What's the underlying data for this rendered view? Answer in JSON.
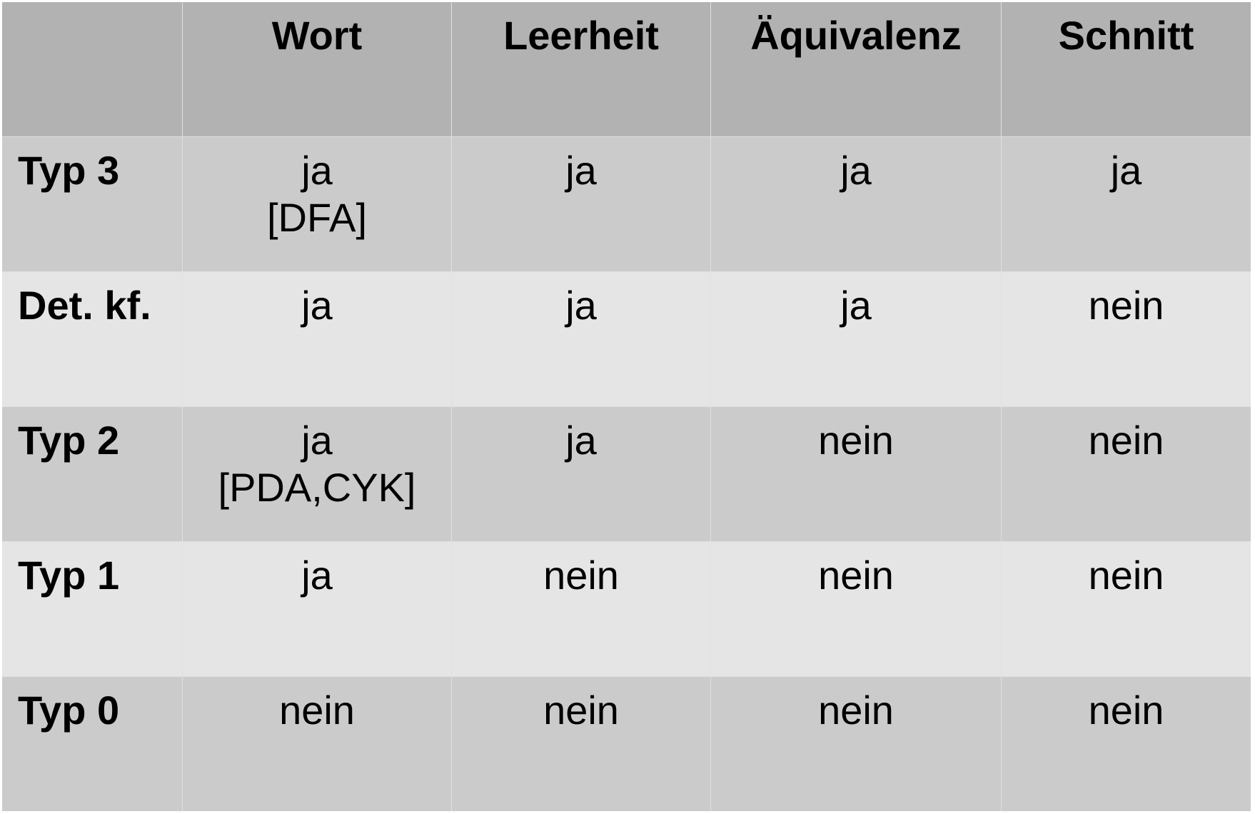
{
  "table": {
    "columns": [
      "Wort",
      "Leerheit",
      "Äquivalenz",
      "Schnitt"
    ],
    "rows": [
      {
        "label": "Typ 3",
        "cells": [
          [
            "ja",
            "[DFA]"
          ],
          [
            "ja"
          ],
          [
            "ja"
          ],
          [
            "ja"
          ]
        ]
      },
      {
        "label": "Det. kf.",
        "cells": [
          [
            "ja"
          ],
          [
            "ja"
          ],
          [
            "ja"
          ],
          [
            "nein"
          ]
        ]
      },
      {
        "label": "Typ 2",
        "cells": [
          [
            "ja",
            "[PDA,CYK]"
          ],
          [
            "ja"
          ],
          [
            "nein"
          ],
          [
            "nein"
          ]
        ]
      },
      {
        "label": "Typ 1",
        "cells": [
          [
            "ja"
          ],
          [
            "nein"
          ],
          [
            "nein"
          ],
          [
            "nein"
          ]
        ]
      },
      {
        "label": "Typ 0",
        "cells": [
          [
            "nein"
          ],
          [
            "nein"
          ],
          [
            "nein"
          ],
          [
            "nein"
          ]
        ]
      }
    ]
  }
}
